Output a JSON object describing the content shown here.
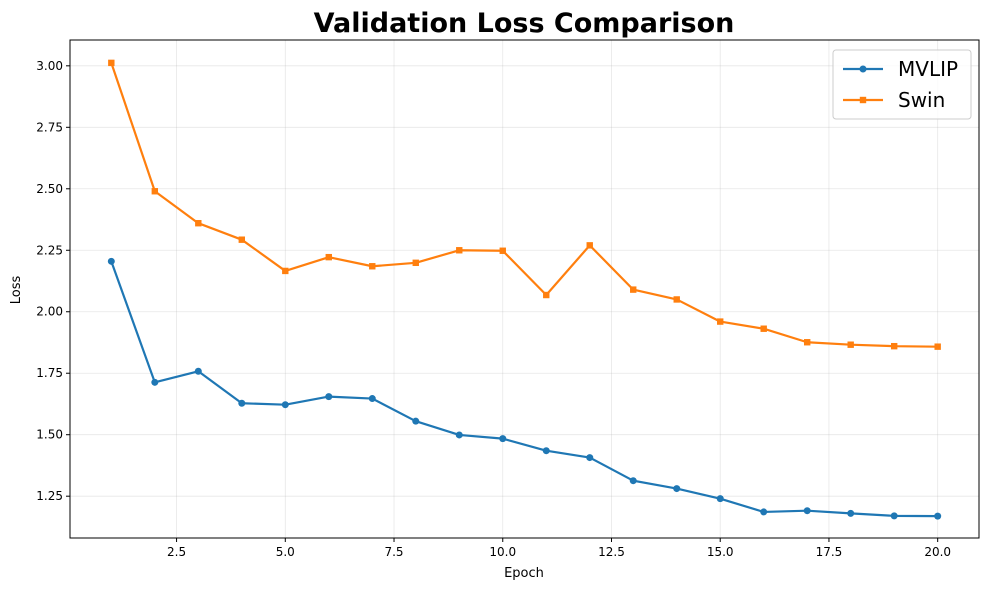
{
  "chart_data": {
    "type": "line",
    "title": "Validation Loss Comparison",
    "xlabel": "Epoch",
    "ylabel": "Loss",
    "xlim": [
      0.05,
      20.95
    ],
    "ylim": [
      1.08,
      3.105
    ],
    "xticks": [
      2.5,
      5.0,
      7.5,
      10.0,
      12.5,
      15.0,
      17.5,
      20.0
    ],
    "xtick_labels": [
      "2.5",
      "5.0",
      "7.5",
      "10.0",
      "12.5",
      "15.0",
      "17.5",
      "20.0"
    ],
    "yticks": [
      1.25,
      1.5,
      1.75,
      2.0,
      2.25,
      2.5,
      2.75,
      3.0
    ],
    "ytick_labels": [
      "1.25",
      "1.50",
      "1.75",
      "2.00",
      "2.25",
      "2.50",
      "2.75",
      "3.00"
    ],
    "grid": true,
    "legend_position": "top-right",
    "x": [
      1,
      2,
      3,
      4,
      5,
      6,
      7,
      8,
      9,
      10,
      11,
      12,
      13,
      14,
      15,
      16,
      17,
      18,
      19,
      20
    ],
    "series": [
      {
        "name": "MVLIP",
        "color": "#1f77b4",
        "marker": "circle",
        "values": [
          2.205,
          1.713,
          1.758,
          1.628,
          1.622,
          1.655,
          1.647,
          1.555,
          1.499,
          1.484,
          1.435,
          1.407,
          1.313,
          1.281,
          1.24,
          1.186,
          1.191,
          1.18,
          1.17,
          1.169
        ]
      },
      {
        "name": "Swin",
        "color": "#ff7f0e",
        "marker": "square",
        "values": [
          3.012,
          2.49,
          2.36,
          2.293,
          2.166,
          2.222,
          2.185,
          2.199,
          2.25,
          2.248,
          2.068,
          2.27,
          2.09,
          2.05,
          1.96,
          1.931,
          1.876,
          1.866,
          1.86,
          1.858
        ]
      }
    ]
  }
}
